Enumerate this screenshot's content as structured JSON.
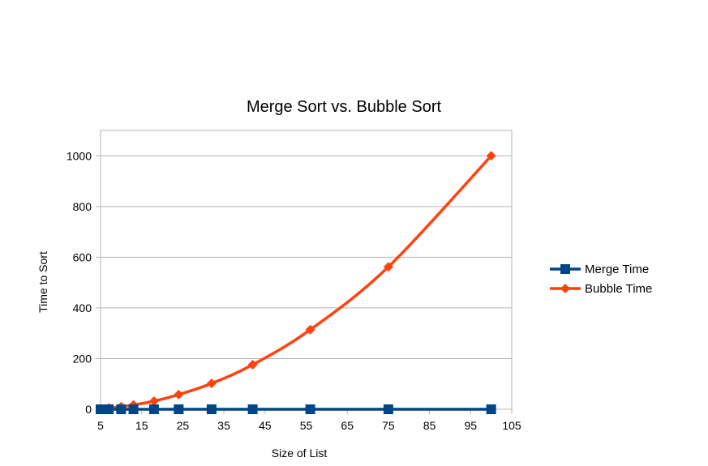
{
  "chart_data": {
    "type": "line",
    "title": "Merge Sort vs. Bubble Sort",
    "xlabel": "Size of List",
    "ylabel": "Time to Sort",
    "xlim": [
      5,
      105
    ],
    "ylim": [
      0,
      1100
    ],
    "xticks": [
      5,
      15,
      25,
      35,
      45,
      55,
      65,
      75,
      85,
      95,
      105
    ],
    "yticks": [
      0,
      200,
      400,
      600,
      800,
      1000
    ],
    "grid": "horizontal",
    "legend_position": "right",
    "series": [
      {
        "name": "Merge Time",
        "color": "#004586",
        "marker": "square",
        "x": [
          5,
          7,
          10,
          13,
          18,
          24,
          32,
          42,
          56,
          75,
          100
        ],
        "y": [
          0,
          0,
          0,
          0,
          0,
          0,
          0,
          0,
          0,
          0,
          0
        ]
      },
      {
        "name": "Bubble Time",
        "color": "#ff420e",
        "marker": "diamond",
        "x": [
          5,
          7,
          10,
          13,
          18,
          24,
          32,
          42,
          56,
          75,
          100
        ],
        "y": [
          2,
          5,
          10,
          17,
          32,
          58,
          102,
          176,
          314,
          562,
          1000
        ]
      }
    ]
  }
}
